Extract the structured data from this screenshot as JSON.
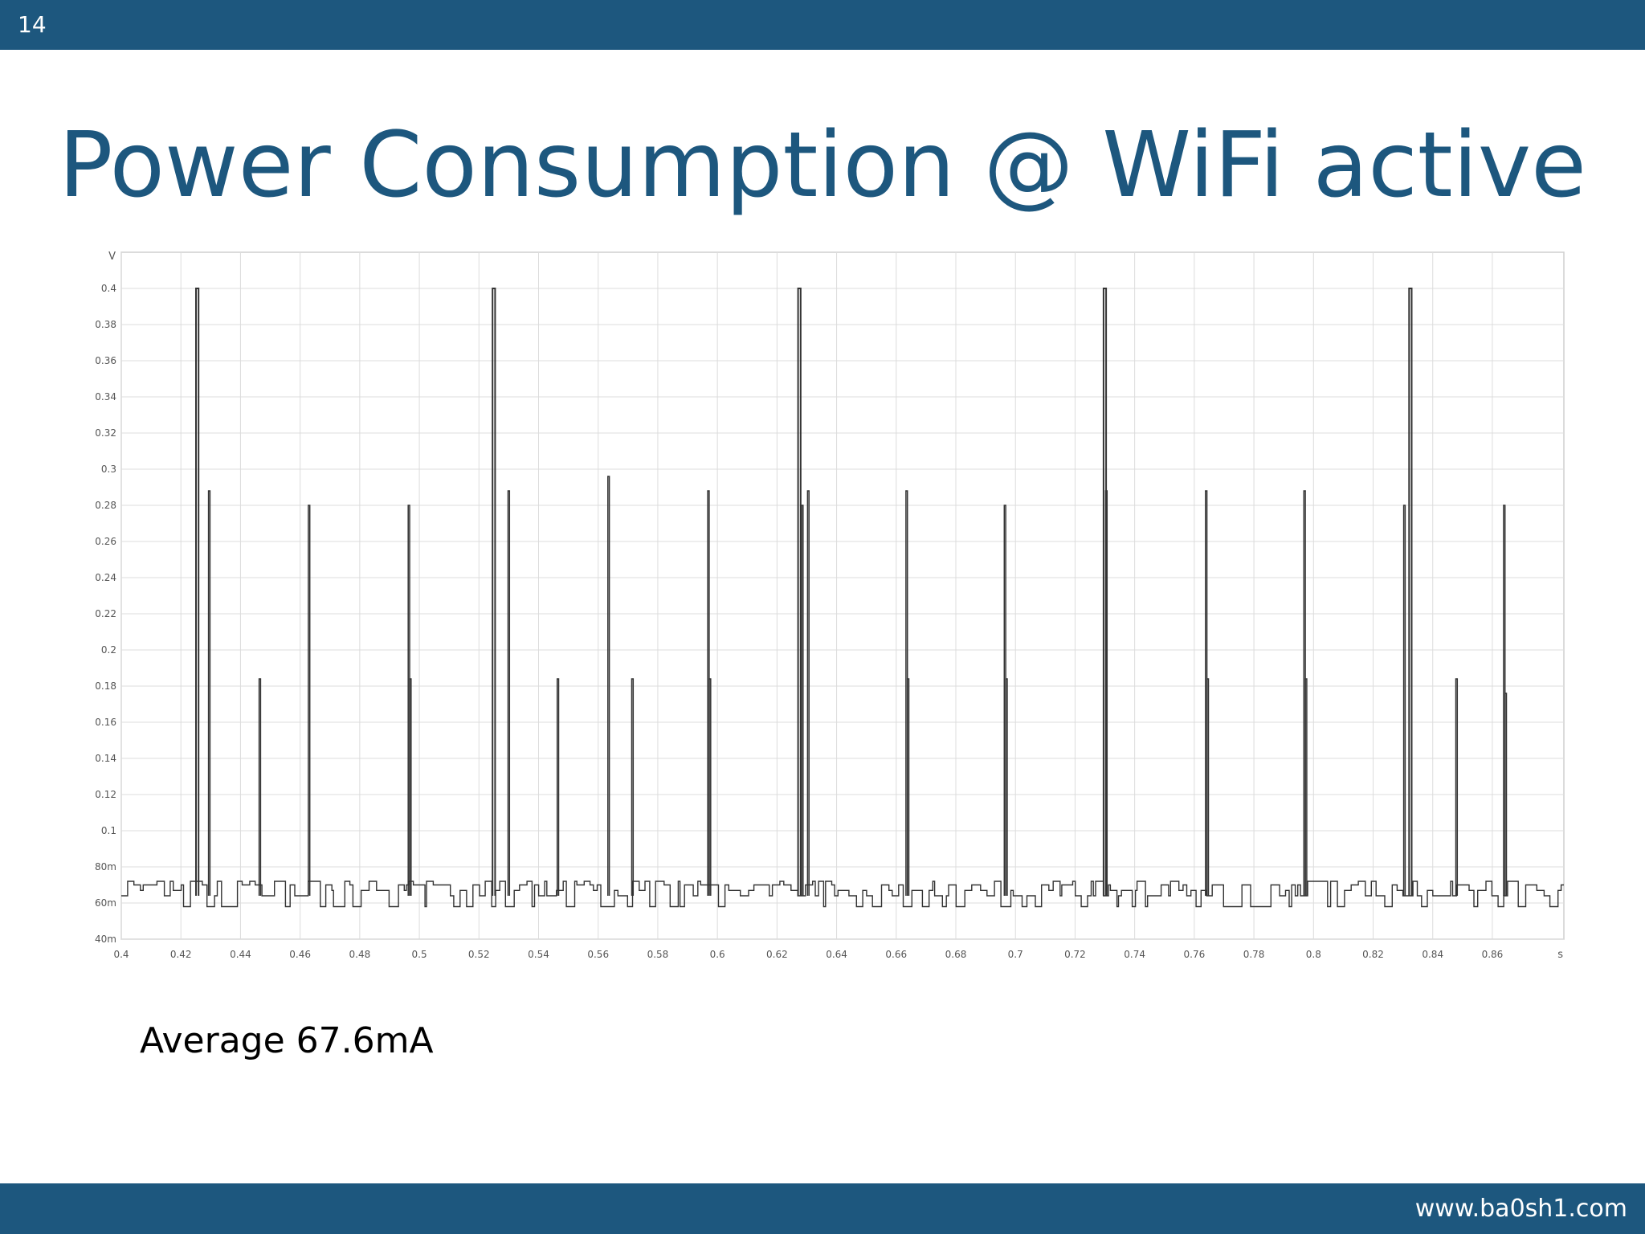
{
  "slide": {
    "number": "14",
    "title": "Power Consumption @ WiFi active",
    "caption": "Average 67.6mA",
    "website": "www.ba0sh1.com",
    "colors": {
      "bar": "#1d577e",
      "title": "#1d577e",
      "trace": "#333333",
      "grid": "#dcdcdc"
    }
  },
  "chart_data": {
    "type": "line",
    "title": "",
    "xlabel": "s",
    "ylabel": "V",
    "xlim": [
      0.4,
      0.884
    ],
    "ylim": [
      0.04,
      0.42
    ],
    "grid": true,
    "x_ticks": [
      0.4,
      0.42,
      0.44,
      0.46,
      0.48,
      0.5,
      0.52,
      0.54,
      0.56,
      0.58,
      0.6,
      0.62,
      0.64,
      0.66,
      0.68,
      0.7,
      0.72,
      0.74,
      0.76,
      0.78,
      0.8,
      0.82,
      0.84,
      0.86
    ],
    "x_tick_labels": [
      "0.4",
      "0.42",
      "0.44",
      "0.46",
      "0.48",
      "0.5",
      "0.52",
      "0.54",
      "0.56",
      "0.58",
      "0.6",
      "0.62",
      "0.64",
      "0.66",
      "0.68",
      "0.7",
      "0.72",
      "0.74",
      "0.76",
      "0.78",
      "0.8",
      "0.82",
      "0.84",
      "0.86"
    ],
    "y_ticks": [
      0.04,
      0.06,
      0.08,
      0.1,
      0.12,
      0.14,
      0.16,
      0.18,
      0.2,
      0.22,
      0.24,
      0.26,
      0.28,
      0.3,
      0.32,
      0.34,
      0.36,
      0.38,
      0.4
    ],
    "y_tick_labels": [
      "40m",
      "60m",
      "80m",
      "0.1",
      "0.12",
      "0.14",
      "0.16",
      "0.18",
      "0.2",
      "0.22",
      "0.24",
      "0.26",
      "0.28",
      "0.3",
      "0.32",
      "0.34",
      "0.36",
      "0.38",
      "0.4"
    ],
    "baseline": 0.064,
    "noise_band": [
      0.058,
      0.072
    ],
    "spikes": [
      {
        "x": 0.4255,
        "y": 0.4
      },
      {
        "x": 0.4295,
        "y": 0.288
      },
      {
        "x": 0.4465,
        "y": 0.184
      },
      {
        "x": 0.463,
        "y": 0.28
      },
      {
        "x": 0.4965,
        "y": 0.28
      },
      {
        "x": 0.497,
        "y": 0.184
      },
      {
        "x": 0.525,
        "y": 0.4
      },
      {
        "x": 0.53,
        "y": 0.288
      },
      {
        "x": 0.5465,
        "y": 0.184
      },
      {
        "x": 0.5635,
        "y": 0.296
      },
      {
        "x": 0.5715,
        "y": 0.184
      },
      {
        "x": 0.597,
        "y": 0.288
      },
      {
        "x": 0.5975,
        "y": 0.184
      },
      {
        "x": 0.6275,
        "y": 0.4
      },
      {
        "x": 0.6285,
        "y": 0.28
      },
      {
        "x": 0.6305,
        "y": 0.288
      },
      {
        "x": 0.6635,
        "y": 0.288
      },
      {
        "x": 0.664,
        "y": 0.184
      },
      {
        "x": 0.6965,
        "y": 0.28
      },
      {
        "x": 0.697,
        "y": 0.184
      },
      {
        "x": 0.73,
        "y": 0.4
      },
      {
        "x": 0.7305,
        "y": 0.288
      },
      {
        "x": 0.764,
        "y": 0.288
      },
      {
        "x": 0.7645,
        "y": 0.184
      },
      {
        "x": 0.797,
        "y": 0.288
      },
      {
        "x": 0.7975,
        "y": 0.184
      },
      {
        "x": 0.8305,
        "y": 0.28
      },
      {
        "x": 0.8325,
        "y": 0.4
      },
      {
        "x": 0.848,
        "y": 0.184
      },
      {
        "x": 0.864,
        "y": 0.28
      },
      {
        "x": 0.8645,
        "y": 0.176
      }
    ]
  }
}
